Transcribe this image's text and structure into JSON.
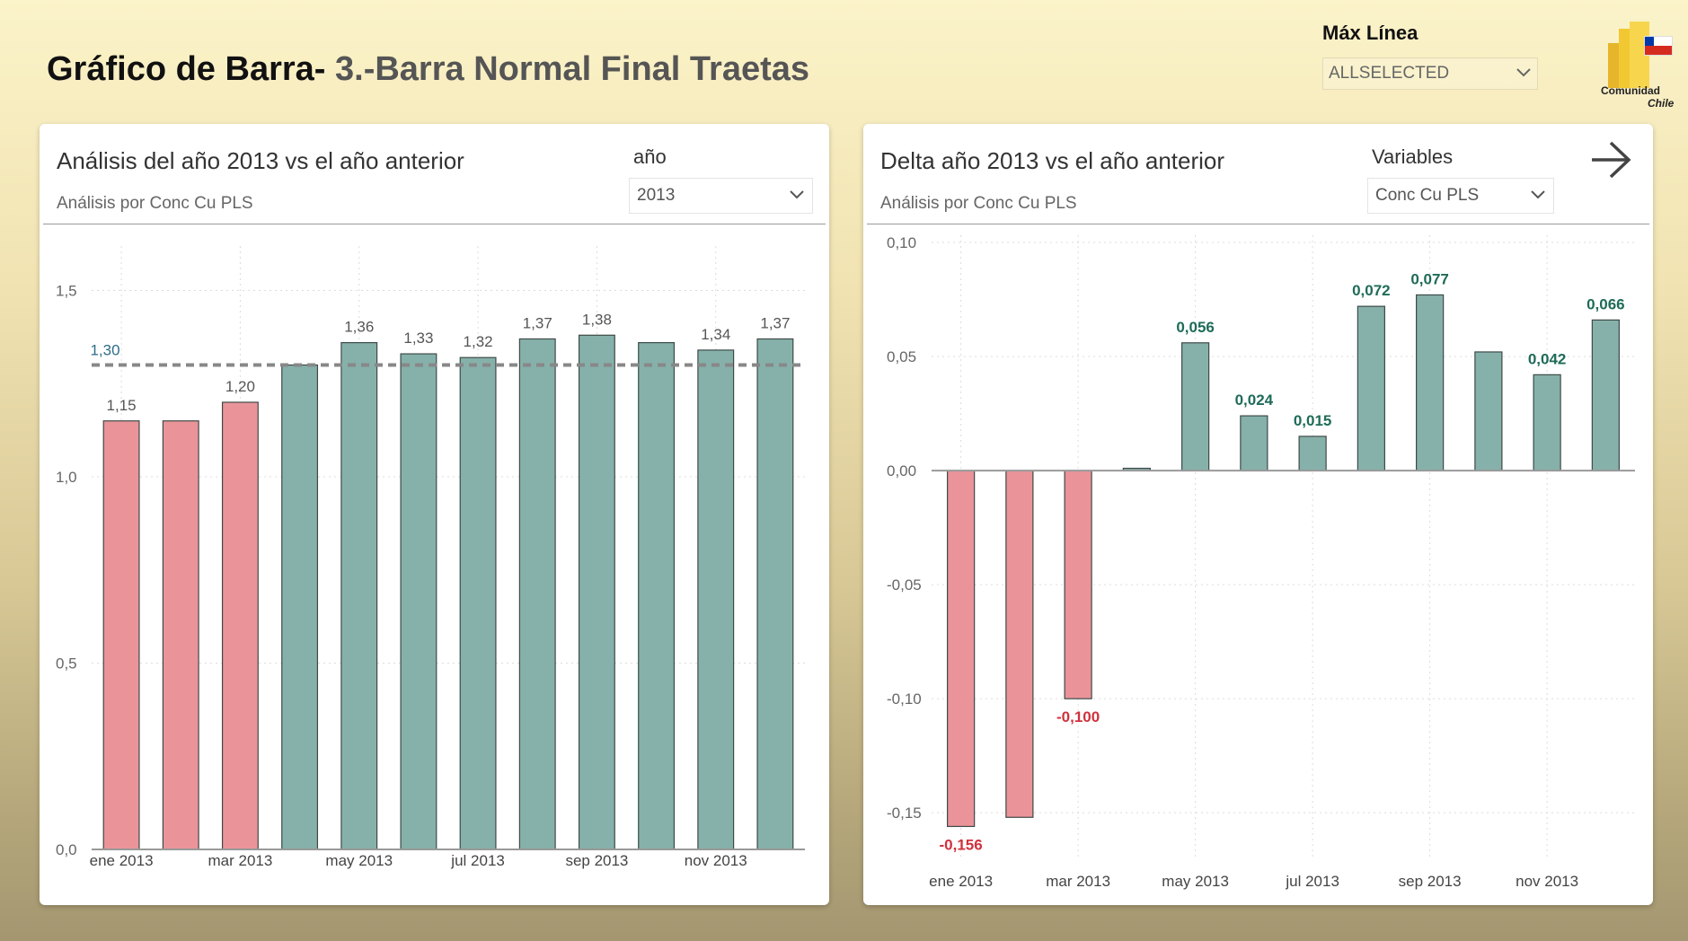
{
  "header": {
    "title_bold": "Gráfico de Barra-",
    "title_rest": " 3.-Barra Normal Final Traetas"
  },
  "top_slicer": {
    "label": "Máx Línea",
    "value": "ALLSELECTED"
  },
  "logo": {
    "line1": "Comunidad",
    "line2": "Chile",
    "icon": "power-bi-logo"
  },
  "left_card": {
    "title": "Análisis del año 2013 vs el año anterior",
    "subtitle": "Análisis por Conc Cu PLS",
    "slicer_label": "año",
    "slicer_value": "2013"
  },
  "right_card": {
    "title": "Delta año 2013 vs el año anterior",
    "subtitle": "Análisis por Conc Cu PLS",
    "slicer_label": "Variables",
    "slicer_value": "Conc Cu PLS",
    "nav_icon": "arrow-right-icon"
  },
  "colors": {
    "below": "#ea9499",
    "above": "#86b1aa",
    "bar_stroke": "#3e4a47",
    "label_neg": "#d0313d",
    "label_pos": "#1f6b58",
    "ref_label": "#2e6d8a"
  },
  "chart_data": [
    {
      "type": "bar",
      "title": "Análisis del año 2013 vs el año anterior",
      "categories": [
        "ene 2013",
        "feb 2013",
        "mar 2013",
        "abr 2013",
        "may 2013",
        "jun 2013",
        "jul 2013",
        "ago 2013",
        "sep 2013",
        "oct 2013",
        "nov 2013",
        "dic 2013"
      ],
      "x_tick_labels": [
        "ene 2013",
        "",
        "mar 2013",
        "",
        "may 2013",
        "",
        "jul 2013",
        "",
        "sep 2013",
        "",
        "nov 2013",
        ""
      ],
      "values": [
        1.15,
        1.15,
        1.2,
        1.3,
        1.36,
        1.33,
        1.32,
        1.37,
        1.38,
        1.36,
        1.34,
        1.37
      ],
      "data_labels": [
        "1,15",
        "",
        "1,20",
        "",
        "1,36",
        "1,33",
        "1,32",
        "1,37",
        "1,38",
        "",
        "1,34",
        "1,37"
      ],
      "bar_colors": [
        "below",
        "below",
        "below",
        "above",
        "above",
        "above",
        "above",
        "above",
        "above",
        "above",
        "above",
        "above"
      ],
      "reference_line": {
        "value": 1.3,
        "label": "1,30"
      },
      "ylim": [
        0,
        1.6
      ],
      "y_ticks": [
        0,
        0.5,
        1.0,
        1.5
      ],
      "y_tick_labels": [
        "0,0",
        "0,5",
        "1,0",
        "1,5"
      ],
      "grid": true
    },
    {
      "type": "bar",
      "title": "Delta año 2013 vs el año anterior",
      "categories": [
        "ene 2013",
        "feb 2013",
        "mar 2013",
        "abr 2013",
        "may 2013",
        "jun 2013",
        "jul 2013",
        "ago 2013",
        "sep 2013",
        "oct 2013",
        "nov 2013",
        "dic 2013"
      ],
      "x_tick_labels": [
        "ene 2013",
        "",
        "mar 2013",
        "",
        "may 2013",
        "",
        "jul 2013",
        "",
        "sep 2013",
        "",
        "nov 2013",
        ""
      ],
      "values": [
        -0.156,
        -0.152,
        -0.1,
        0.001,
        0.056,
        0.024,
        0.015,
        0.072,
        0.077,
        0.052,
        0.042,
        0.066
      ],
      "data_labels": [
        "-0,156",
        "",
        "-0,100",
        "",
        "0,056",
        "0,024",
        "0,015",
        "0,072",
        "0,077",
        "",
        "0,042",
        "0,066"
      ],
      "bar_colors": [
        "below",
        "below",
        "below",
        "above",
        "above",
        "above",
        "above",
        "above",
        "above",
        "above",
        "above",
        "above"
      ],
      "ylim": [
        -0.17,
        0.1
      ],
      "y_ticks": [
        0.1,
        0.05,
        0.0,
        -0.05,
        -0.1,
        -0.15
      ],
      "y_tick_labels": [
        "0,10",
        "0,05",
        "0,00",
        "-0,05",
        "-0,10",
        "-0,15"
      ],
      "grid": true
    }
  ]
}
